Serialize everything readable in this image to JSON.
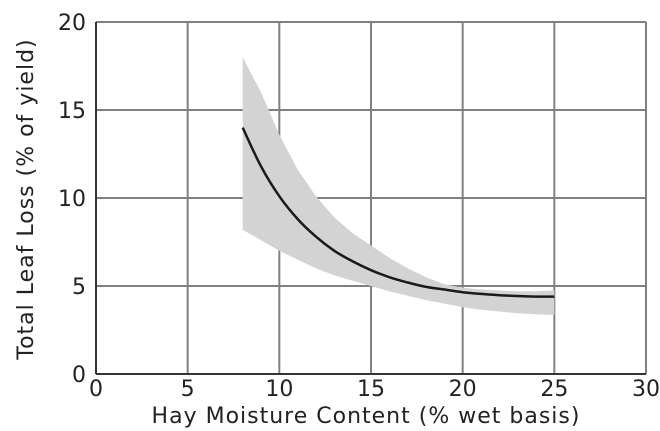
{
  "chart_data": {
    "type": "area",
    "title": "",
    "xlabel": "Hay Moisture Content (% wet basis)",
    "ylabel": "Total Leaf Loss (% of yield)",
    "xlim": [
      0,
      30
    ],
    "ylim": [
      0,
      20
    ],
    "x_ticks": [
      0,
      5,
      10,
      15,
      20,
      25,
      30
    ],
    "y_ticks": [
      0,
      5,
      10,
      15,
      20
    ],
    "x_tick_labels": [
      "0",
      "5",
      "10",
      "15",
      "20",
      "25",
      "30"
    ],
    "y_tick_labels": [
      "0",
      "5",
      "10",
      "15",
      "20"
    ],
    "grid": true,
    "legend": "none",
    "series": [
      {
        "type": "line",
        "color": "#1a1a1a",
        "x": [
          8,
          9,
          10,
          11,
          12,
          13,
          14,
          15,
          16,
          17,
          18,
          19,
          20,
          21,
          22,
          23,
          24,
          25
        ],
        "y": [
          14.0,
          11.8,
          10.1,
          8.8,
          7.8,
          7.0,
          6.4,
          5.9,
          5.5,
          5.2,
          4.95,
          4.8,
          4.65,
          4.55,
          4.48,
          4.43,
          4.4,
          4.4
        ]
      },
      {
        "type": "band",
        "color": "#d3d3d3",
        "x": [
          8,
          9,
          10,
          11,
          12,
          13,
          14,
          15,
          16,
          17,
          18,
          19,
          20,
          21,
          22,
          23,
          24,
          25
        ],
        "upper": [
          18.0,
          16.0,
          13.6,
          11.6,
          10.1,
          8.9,
          8.0,
          7.3,
          6.6,
          6.0,
          5.5,
          5.1,
          4.9,
          4.8,
          4.75,
          4.7,
          4.7,
          4.75
        ],
        "lower": [
          8.2,
          7.6,
          7.0,
          6.5,
          6.0,
          5.6,
          5.3,
          5.0,
          4.7,
          4.45,
          4.2,
          4.0,
          3.8,
          3.65,
          3.55,
          3.45,
          3.4,
          3.35
        ]
      }
    ]
  }
}
